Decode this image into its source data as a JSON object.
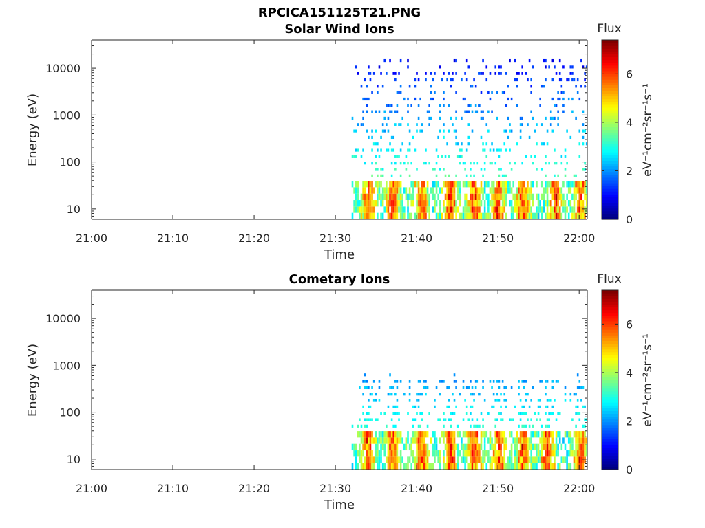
{
  "figure": {
    "title": "RPCICA151125T21.PNG"
  },
  "chart_data": [
    {
      "type": "heatmap",
      "title": "Solar Wind Ions",
      "xlabel": "Time",
      "ylabel": "Energy (eV)",
      "x_ticks": [
        "21:00",
        "21:10",
        "21:20",
        "21:30",
        "21:40",
        "21:50",
        "22:00"
      ],
      "y_ticks": [
        "10",
        "100",
        "1000",
        "10000"
      ],
      "y_scale": "log",
      "ylim": [
        6,
        40000
      ],
      "xlim_minutes": [
        0,
        61
      ],
      "colorbar": {
        "title": "Flux",
        "label": "eV⁻¹cm⁻²sr⁻¹s⁻¹",
        "ticks": [
          "0",
          "2",
          "4",
          "6"
        ],
        "range": [
          0,
          7.4
        ],
        "colormap": "jet"
      },
      "data_start_minute": 32,
      "data_end_minute": 61,
      "energy_band_eV": [
        6,
        15000
      ],
      "peak_bursts_minute": [
        34,
        37,
        40.5,
        44,
        47,
        50,
        53,
        57,
        60
      ],
      "low_energy_band_eV": [
        6,
        45
      ],
      "peak_flux": 7.2,
      "grid": false
    },
    {
      "type": "heatmap",
      "title": "Cometary Ions",
      "xlabel": "Time",
      "ylabel": "Energy (eV)",
      "x_ticks": [
        "21:00",
        "21:10",
        "21:20",
        "21:30",
        "21:40",
        "21:50",
        "22:00"
      ],
      "y_ticks": [
        "10",
        "100",
        "1000",
        "10000"
      ],
      "y_scale": "log",
      "ylim": [
        6,
        40000
      ],
      "xlim_minutes": [
        0,
        61
      ],
      "colorbar": {
        "title": "Flux",
        "label": "eV⁻¹cm⁻²sr⁻¹s⁻¹",
        "ticks": [
          "0",
          "2",
          "4",
          "6"
        ],
        "range": [
          0,
          7.4
        ],
        "colormap": "jet"
      },
      "data_start_minute": 32,
      "data_end_minute": 61,
      "energy_band_eV": [
        6,
        600
      ],
      "peak_bursts_minute": [
        34,
        37,
        40.5,
        44,
        47,
        50,
        53,
        56,
        60
      ],
      "low_energy_band_eV": [
        6,
        45
      ],
      "peak_flux": 7.3,
      "grid": false
    }
  ]
}
